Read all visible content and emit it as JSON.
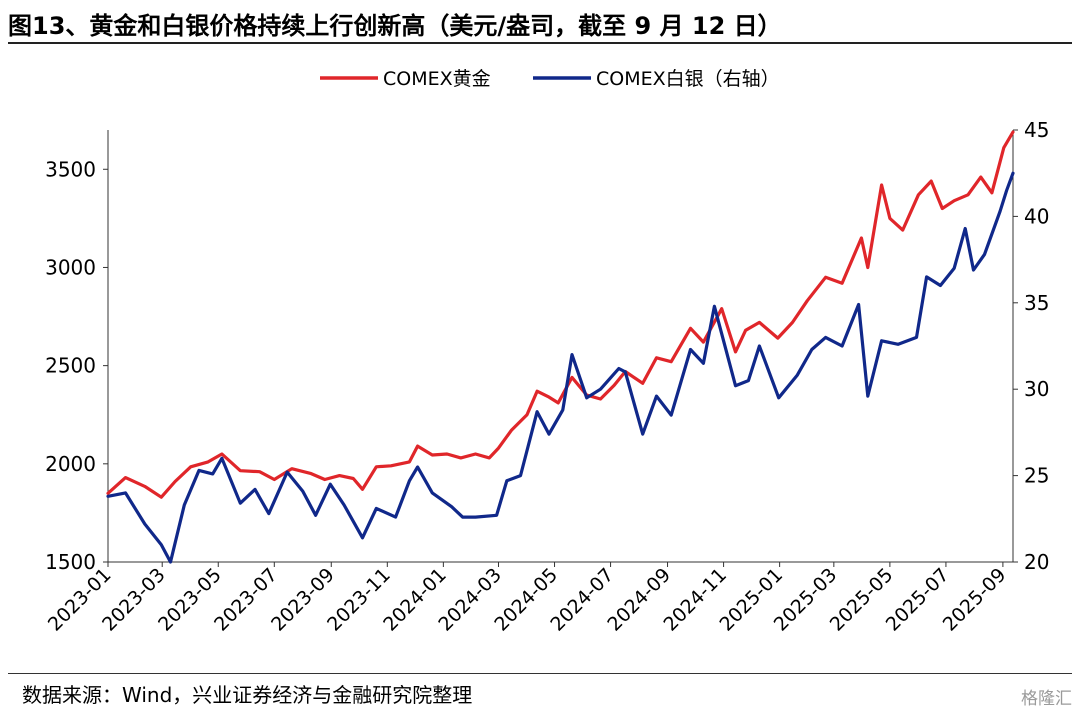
{
  "header": {
    "title": "图13、黄金和白银价格持续上行创新高（美元/盎司，截至 9 月 12 日）"
  },
  "footer": {
    "source": "数据来源：Wind，兴业证券经济与金融研究院整理",
    "watermark": "格隆汇"
  },
  "chart_data": {
    "type": "line",
    "title": "图13、黄金和白银价格持续上行创新高（美元/盎司，截至 9 月 12 日）",
    "legend_position": "top-center",
    "grid": false,
    "x_axis": {
      "type": "date",
      "range": [
        "2023-01-01",
        "2025-09-12"
      ],
      "tick_labels": [
        "2023-01",
        "2023-03",
        "2023-05",
        "2023-07",
        "2023-09",
        "2023-11",
        "2024-01",
        "2024-03",
        "2024-05",
        "2024-07",
        "2024-09",
        "2024-11",
        "2025-01",
        "2025-03",
        "2025-05",
        "2025-07",
        "2025-09"
      ]
    },
    "y_left": {
      "range": [
        1500,
        3700
      ],
      "ticks": [
        1500,
        2000,
        2500,
        3000,
        3500
      ]
    },
    "y_right": {
      "range": [
        20,
        45
      ],
      "ticks": [
        20,
        25,
        30,
        35,
        40,
        45
      ]
    },
    "series": [
      {
        "name": "COMEX黄金",
        "axis": "left",
        "color": "#e0262a",
        "points": [
          [
            "2023-01-01",
            1850
          ],
          [
            "2023-01-20",
            1930
          ],
          [
            "2023-02-10",
            1885
          ],
          [
            "2023-02-28",
            1830
          ],
          [
            "2023-03-15",
            1910
          ],
          [
            "2023-04-01",
            1985
          ],
          [
            "2023-04-20",
            2010
          ],
          [
            "2023-05-05",
            2050
          ],
          [
            "2023-05-25",
            1965
          ],
          [
            "2023-06-15",
            1960
          ],
          [
            "2023-07-01",
            1920
          ],
          [
            "2023-07-20",
            1975
          ],
          [
            "2023-08-10",
            1950
          ],
          [
            "2023-08-25",
            1920
          ],
          [
            "2023-09-10",
            1940
          ],
          [
            "2023-09-25",
            1925
          ],
          [
            "2023-10-05",
            1870
          ],
          [
            "2023-10-20",
            1985
          ],
          [
            "2023-11-05",
            1990
          ],
          [
            "2023-11-25",
            2010
          ],
          [
            "2023-12-04",
            2090
          ],
          [
            "2023-12-20",
            2045
          ],
          [
            "2024-01-05",
            2050
          ],
          [
            "2024-01-20",
            2030
          ],
          [
            "2024-02-05",
            2050
          ],
          [
            "2024-02-20",
            2030
          ],
          [
            "2024-03-01",
            2080
          ],
          [
            "2024-03-15",
            2170
          ],
          [
            "2024-04-01",
            2250
          ],
          [
            "2024-04-12",
            2370
          ],
          [
            "2024-04-25",
            2340
          ],
          [
            "2024-05-05",
            2310
          ],
          [
            "2024-05-20",
            2440
          ],
          [
            "2024-06-05",
            2350
          ],
          [
            "2024-06-20",
            2330
          ],
          [
            "2024-07-05",
            2400
          ],
          [
            "2024-07-17",
            2470
          ],
          [
            "2024-08-05",
            2410
          ],
          [
            "2024-08-20",
            2540
          ],
          [
            "2024-09-05",
            2520
          ],
          [
            "2024-09-26",
            2690
          ],
          [
            "2024-10-10",
            2620
          ],
          [
            "2024-10-30",
            2790
          ],
          [
            "2024-11-14",
            2570
          ],
          [
            "2024-11-25",
            2680
          ],
          [
            "2024-12-10",
            2720
          ],
          [
            "2024-12-30",
            2640
          ],
          [
            "2025-01-15",
            2720
          ],
          [
            "2025-01-31",
            2830
          ],
          [
            "2025-02-20",
            2950
          ],
          [
            "2025-03-10",
            2920
          ],
          [
            "2025-03-31",
            3150
          ],
          [
            "2025-04-07",
            3000
          ],
          [
            "2025-04-22",
            3420
          ],
          [
            "2025-05-01",
            3250
          ],
          [
            "2025-05-15",
            3190
          ],
          [
            "2025-06-01",
            3370
          ],
          [
            "2025-06-15",
            3440
          ],
          [
            "2025-06-27",
            3300
          ],
          [
            "2025-07-10",
            3340
          ],
          [
            "2025-07-25",
            3370
          ],
          [
            "2025-08-08",
            3460
          ],
          [
            "2025-08-20",
            3380
          ],
          [
            "2025-09-02",
            3610
          ],
          [
            "2025-09-12",
            3690
          ]
        ]
      },
      {
        "name": "COMEX白银（右轴）",
        "axis": "right",
        "color": "#10288a",
        "points": [
          [
            "2023-01-01",
            23.8
          ],
          [
            "2023-01-20",
            24.0
          ],
          [
            "2023-02-10",
            22.2
          ],
          [
            "2023-02-28",
            21.0
          ],
          [
            "2023-03-10",
            20.0
          ],
          [
            "2023-03-25",
            23.3
          ],
          [
            "2023-04-10",
            25.3
          ],
          [
            "2023-04-25",
            25.1
          ],
          [
            "2023-05-05",
            26.0
          ],
          [
            "2023-05-25",
            23.4
          ],
          [
            "2023-06-10",
            24.2
          ],
          [
            "2023-06-25",
            22.8
          ],
          [
            "2023-07-15",
            25.2
          ],
          [
            "2023-08-01",
            24.1
          ],
          [
            "2023-08-15",
            22.7
          ],
          [
            "2023-08-31",
            24.5
          ],
          [
            "2023-09-15",
            23.3
          ],
          [
            "2023-10-05",
            21.4
          ],
          [
            "2023-10-20",
            23.1
          ],
          [
            "2023-11-10",
            22.6
          ],
          [
            "2023-11-25",
            24.7
          ],
          [
            "2023-12-04",
            25.5
          ],
          [
            "2023-12-20",
            24.0
          ],
          [
            "2024-01-10",
            23.2
          ],
          [
            "2024-01-22",
            22.6
          ],
          [
            "2024-02-05",
            22.6
          ],
          [
            "2024-02-28",
            22.7
          ],
          [
            "2024-03-10",
            24.7
          ],
          [
            "2024-03-25",
            25.0
          ],
          [
            "2024-04-12",
            28.7
          ],
          [
            "2024-04-25",
            27.4
          ],
          [
            "2024-05-10",
            28.8
          ],
          [
            "2024-05-20",
            32.0
          ],
          [
            "2024-06-05",
            29.5
          ],
          [
            "2024-06-20",
            30.0
          ],
          [
            "2024-07-10",
            31.2
          ],
          [
            "2024-07-17",
            31.0
          ],
          [
            "2024-08-05",
            27.4
          ],
          [
            "2024-08-20",
            29.6
          ],
          [
            "2024-09-05",
            28.5
          ],
          [
            "2024-09-26",
            32.3
          ],
          [
            "2024-10-10",
            31.5
          ],
          [
            "2024-10-22",
            34.8
          ],
          [
            "2024-11-14",
            30.2
          ],
          [
            "2024-11-28",
            30.5
          ],
          [
            "2024-12-10",
            32.5
          ],
          [
            "2024-12-31",
            29.5
          ],
          [
            "2025-01-20",
            30.8
          ],
          [
            "2025-02-05",
            32.3
          ],
          [
            "2025-02-20",
            33.0
          ],
          [
            "2025-03-10",
            32.5
          ],
          [
            "2025-03-28",
            34.9
          ],
          [
            "2025-04-07",
            29.6
          ],
          [
            "2025-04-22",
            32.8
          ],
          [
            "2025-05-10",
            32.6
          ],
          [
            "2025-05-30",
            33.0
          ],
          [
            "2025-06-10",
            36.5
          ],
          [
            "2025-06-25",
            36.0
          ],
          [
            "2025-07-10",
            37.0
          ],
          [
            "2025-07-22",
            39.3
          ],
          [
            "2025-07-31",
            36.9
          ],
          [
            "2025-08-12",
            37.8
          ],
          [
            "2025-08-29",
            40.3
          ],
          [
            "2025-09-05",
            41.5
          ],
          [
            "2025-09-12",
            42.5
          ]
        ]
      }
    ]
  }
}
